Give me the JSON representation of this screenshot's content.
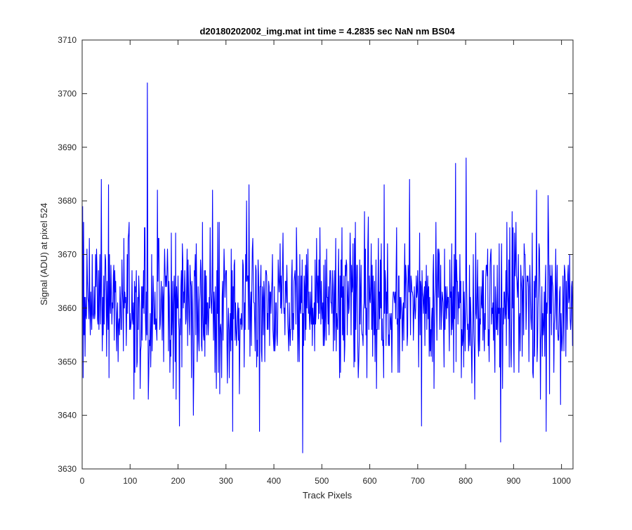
{
  "chart_data": {
    "type": "line",
    "title": "d20180202002_img.mat int time = 4.2835 sec  NaN nm BS04",
    "xlabel": "Track Pixels",
    "ylabel": "Signal (ADU) at pixel 524",
    "xlim": [
      0,
      1024
    ],
    "ylim": [
      3630,
      3710
    ],
    "xticks": [
      0,
      100,
      200,
      300,
      400,
      500,
      600,
      700,
      800,
      900,
      1000
    ],
    "yticks": [
      3630,
      3640,
      3650,
      3660,
      3670,
      3680,
      3690,
      3700,
      3710
    ],
    "grid": false,
    "legend": "none",
    "series": [
      {
        "color": "#0000ff",
        "x_start": 1,
        "x_step": 1,
        "count": 1024,
        "mean": 3661,
        "std": 7,
        "min": 3633,
        "max": 3702,
        "notable_points": [
          {
            "x": 1,
            "y": 3679
          },
          {
            "x": 40,
            "y": 3684
          },
          {
            "x": 55,
            "y": 3683
          },
          {
            "x": 136,
            "y": 3702
          },
          {
            "x": 138,
            "y": 3643
          },
          {
            "x": 157,
            "y": 3682
          },
          {
            "x": 203,
            "y": 3638
          },
          {
            "x": 314,
            "y": 3637
          },
          {
            "x": 348,
            "y": 3683
          },
          {
            "x": 370,
            "y": 3637
          },
          {
            "x": 460,
            "y": 3633
          },
          {
            "x": 630,
            "y": 3683
          },
          {
            "x": 683,
            "y": 3684
          },
          {
            "x": 708,
            "y": 3638
          },
          {
            "x": 779,
            "y": 3687
          },
          {
            "x": 801,
            "y": 3688
          },
          {
            "x": 873,
            "y": 3635
          },
          {
            "x": 968,
            "y": 3637
          }
        ]
      }
    ]
  }
}
